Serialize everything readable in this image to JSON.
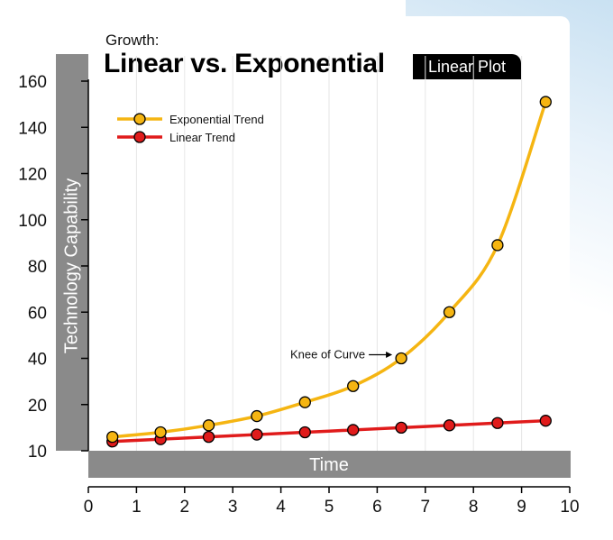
{
  "header": {
    "kicker": "Growth:",
    "title": "Linear vs. Exponential",
    "badge": "Linear Plot"
  },
  "chart_data": {
    "type": "line",
    "title": "Linear vs. Exponential",
    "subtitle": "Growth:",
    "scale_label": "Linear Plot",
    "xlabel": "Time",
    "ylabel": "Technology Capability",
    "xlim": [
      0,
      10
    ],
    "ylim": [
      10,
      160
    ],
    "x_ticks": [
      "0",
      "1",
      "2",
      "3",
      "4",
      "5",
      "6",
      "7",
      "8",
      "9",
      "10"
    ],
    "y_ticks": [
      "10",
      "20",
      "40",
      "60",
      "80",
      "100",
      "120",
      "140",
      "160"
    ],
    "grid": "vertical",
    "legend_position": "top-left",
    "x": [
      0.5,
      1.5,
      2.5,
      3.5,
      4.5,
      5.5,
      6.5,
      7.5,
      8.5,
      9.5
    ],
    "series": [
      {
        "name": "Exponential Trend",
        "color": "#f5b512",
        "values": [
          13,
          14,
          15.5,
          17.5,
          21,
          28,
          40,
          60,
          89,
          151
        ]
      },
      {
        "name": "Linear Trend",
        "color": "#e01b1b",
        "values": [
          12,
          12.5,
          13,
          13.5,
          14,
          14.5,
          15,
          15.5,
          16,
          16.5
        ]
      }
    ],
    "annotations": [
      {
        "text": "Knee of Curve",
        "x": 6.5,
        "y": 40
      }
    ]
  }
}
